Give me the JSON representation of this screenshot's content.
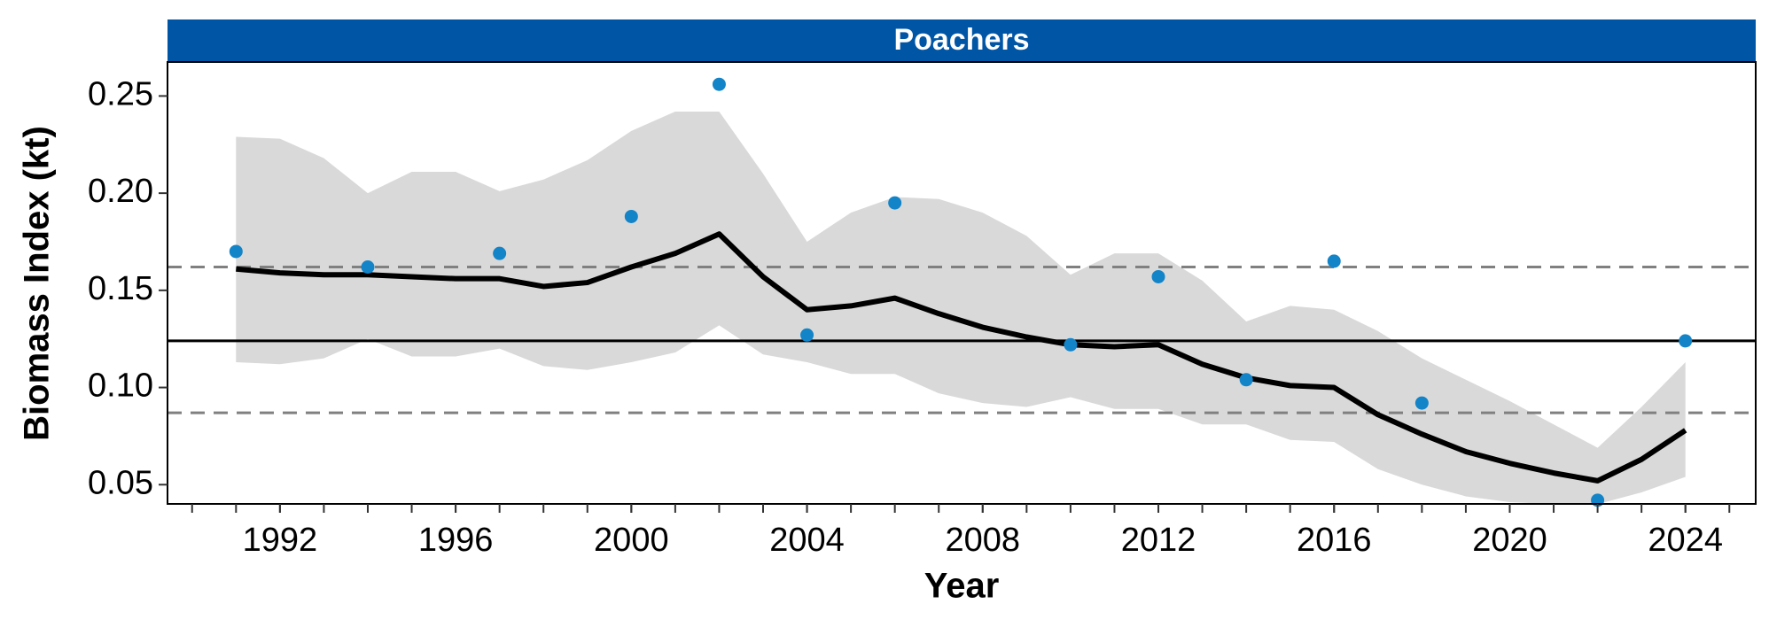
{
  "chart_data": {
    "type": "line",
    "title": "Poachers",
    "xlabel": "Year",
    "ylabel": "Biomass Index (kt)",
    "title_bg": "#0055a5",
    "x": [
      1991,
      1992,
      1993,
      1994,
      1995,
      1996,
      1997,
      1998,
      1999,
      2000,
      2001,
      2002,
      2003,
      2004,
      2005,
      2006,
      2007,
      2008,
      2009,
      2010,
      2011,
      2012,
      2013,
      2014,
      2015,
      2016,
      2017,
      2018,
      2019,
      2020,
      2021,
      2022,
      2023,
      2024
    ],
    "series": [
      {
        "color": "#000000",
        "values": [
          0.161,
          0.159,
          0.158,
          0.158,
          0.157,
          0.156,
          0.156,
          0.152,
          0.154,
          0.162,
          0.169,
          0.179,
          0.157,
          0.14,
          0.142,
          0.146,
          0.138,
          0.131,
          0.126,
          0.122,
          0.121,
          0.122,
          0.112,
          0.105,
          0.101,
          0.1,
          0.086,
          0.076,
          0.067,
          0.061,
          0.056,
          0.052,
          0.063,
          0.078
        ]
      }
    ],
    "band": {
      "color": "#d9d9d9",
      "upper": [
        0.229,
        0.228,
        0.218,
        0.2,
        0.211,
        0.211,
        0.201,
        0.207,
        0.217,
        0.232,
        0.242,
        0.242,
        0.21,
        0.175,
        0.19,
        0.198,
        0.197,
        0.19,
        0.178,
        0.158,
        0.169,
        0.169,
        0.155,
        0.134,
        0.142,
        0.14,
        0.129,
        0.115,
        0.104,
        0.093,
        0.081,
        0.069,
        0.09,
        0.113
      ],
      "lower": [
        0.113,
        0.112,
        0.115,
        0.125,
        0.116,
        0.116,
        0.12,
        0.111,
        0.109,
        0.113,
        0.118,
        0.132,
        0.117,
        0.113,
        0.107,
        0.107,
        0.097,
        0.092,
        0.09,
        0.095,
        0.089,
        0.089,
        0.081,
        0.081,
        0.073,
        0.072,
        0.058,
        0.05,
        0.044,
        0.041,
        0.04,
        0.04,
        0.046,
        0.054
      ]
    },
    "points": {
      "color": "#1384c8",
      "x": [
        1991,
        1994,
        1997,
        2000,
        2002,
        2004,
        2006,
        2010,
        2012,
        2014,
        2016,
        2018,
        2022,
        2024
      ],
      "values": [
        0.17,
        0.162,
        0.169,
        0.188,
        0.256,
        0.127,
        0.195,
        0.122,
        0.157,
        0.104,
        0.165,
        0.092,
        0.042,
        0.124
      ]
    },
    "hlines": [
      {
        "value": 0.124,
        "style": "solid",
        "color": "#000000"
      },
      {
        "value": 0.162,
        "style": "dashed",
        "color": "#808080"
      },
      {
        "value": 0.087,
        "style": "dashed",
        "color": "#808080"
      }
    ],
    "xlim": [
      1989.44,
      2025.6
    ],
    "ylim": [
      0.0401,
      0.2675
    ],
    "xticks": [
      1992,
      1996,
      2000,
      2004,
      2008,
      2012,
      2016,
      2020,
      2024
    ],
    "xminor_ticks": [
      1990,
      1991,
      1992,
      1993,
      1994,
      1995,
      1996,
      1997,
      1998,
      1999,
      2000,
      2001,
      2002,
      2003,
      2004,
      2005,
      2006,
      2007,
      2008,
      2009,
      2010,
      2011,
      2012,
      2013,
      2014,
      2015,
      2016,
      2017,
      2018,
      2019,
      2020,
      2021,
      2022,
      2023,
      2024,
      2025
    ],
    "yticks": [
      0.05,
      {
        "value": 0.1,
        "label": "0.10"
      },
      0.15,
      {
        "value": 0.2,
        "label": "0.20"
      },
      0.25
    ]
  }
}
